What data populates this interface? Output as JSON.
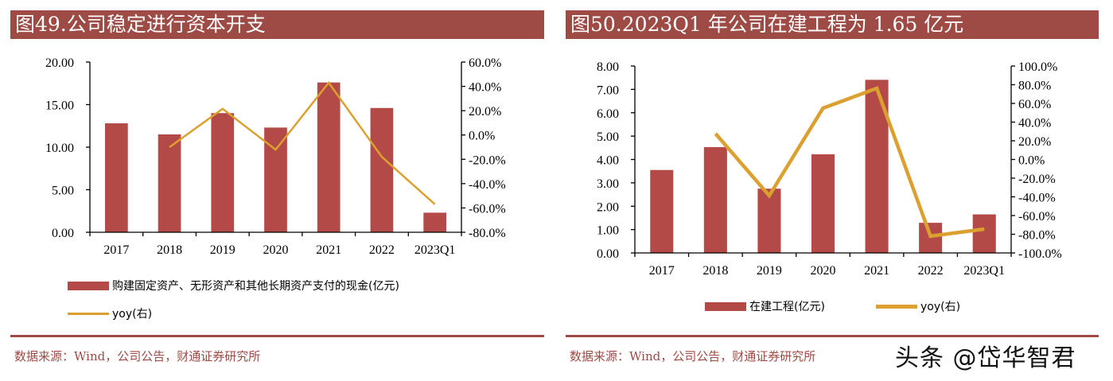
{
  "colors": {
    "bar": "#b34a47",
    "line": "#dca030",
    "title_bg": "#9e4b45",
    "source_text": "#9e4b45"
  },
  "chart_data": [
    {
      "type": "bar",
      "title": "图49.公司稳定进行资本开支",
      "categories": [
        "2017",
        "2018",
        "2019",
        "2020",
        "2021",
        "2022",
        "2023Q1"
      ],
      "series": [
        {
          "name": "购建固定资产、无形资产和其他长期资产支付的现金(亿元)",
          "type": "bar",
          "axis": "left",
          "values": [
            12.8,
            11.5,
            14.0,
            12.3,
            17.6,
            14.6,
            2.3
          ]
        },
        {
          "name": "yoy(右)",
          "type": "line",
          "axis": "right",
          "values": [
            null,
            -10.0,
            21.5,
            -12.0,
            43.0,
            -18.0,
            -57.0
          ]
        }
      ],
      "ylim": [
        0,
        20
      ],
      "yticks": [
        "0.00",
        "5.00",
        "10.00",
        "15.00",
        "20.00"
      ],
      "y2lim": [
        -80,
        60
      ],
      "y2ticks": [
        "-80.0%",
        "-60.0%",
        "-40.0%",
        "-20.0%",
        "0.0%",
        "20.0%",
        "40.0%",
        "60.0%"
      ],
      "legend_position": "bottom",
      "grid": false,
      "source": "数据来源：Wind，公司公告，财通证券研究所"
    },
    {
      "type": "bar",
      "title": "图50.2023Q1 年公司在建工程为 1.65 亿元",
      "categories": [
        "2017",
        "2018",
        "2019",
        "2020",
        "2021",
        "2022",
        "2023Q1"
      ],
      "series": [
        {
          "name": "在建工程(亿元)",
          "type": "bar",
          "axis": "left",
          "values": [
            3.55,
            4.53,
            2.75,
            4.22,
            7.41,
            1.29,
            1.65
          ]
        },
        {
          "name": "yoy(右)",
          "type": "line",
          "axis": "right",
          "values": [
            null,
            27.7,
            -38.7,
            54.9,
            76.2,
            -82.0,
            -74.5
          ]
        }
      ],
      "ylim": [
        0,
        8
      ],
      "yticks": [
        "0.00",
        "1.00",
        "2.00",
        "3.00",
        "4.00",
        "5.00",
        "6.00",
        "7.00",
        "8.00"
      ],
      "y2lim": [
        -100,
        100
      ],
      "y2ticks": [
        "-100.0%",
        "-80.0%",
        "-60.0%",
        "-40.0%",
        "-20.0%",
        "0.0%",
        "20.0%",
        "40.0%",
        "60.0%",
        "80.0%",
        "100.0%"
      ],
      "legend_position": "bottom",
      "grid": false,
      "source": "数据来源：Wind，公司公告，财通证券研究所"
    }
  ],
  "watermark": "头条 @岱华智君"
}
